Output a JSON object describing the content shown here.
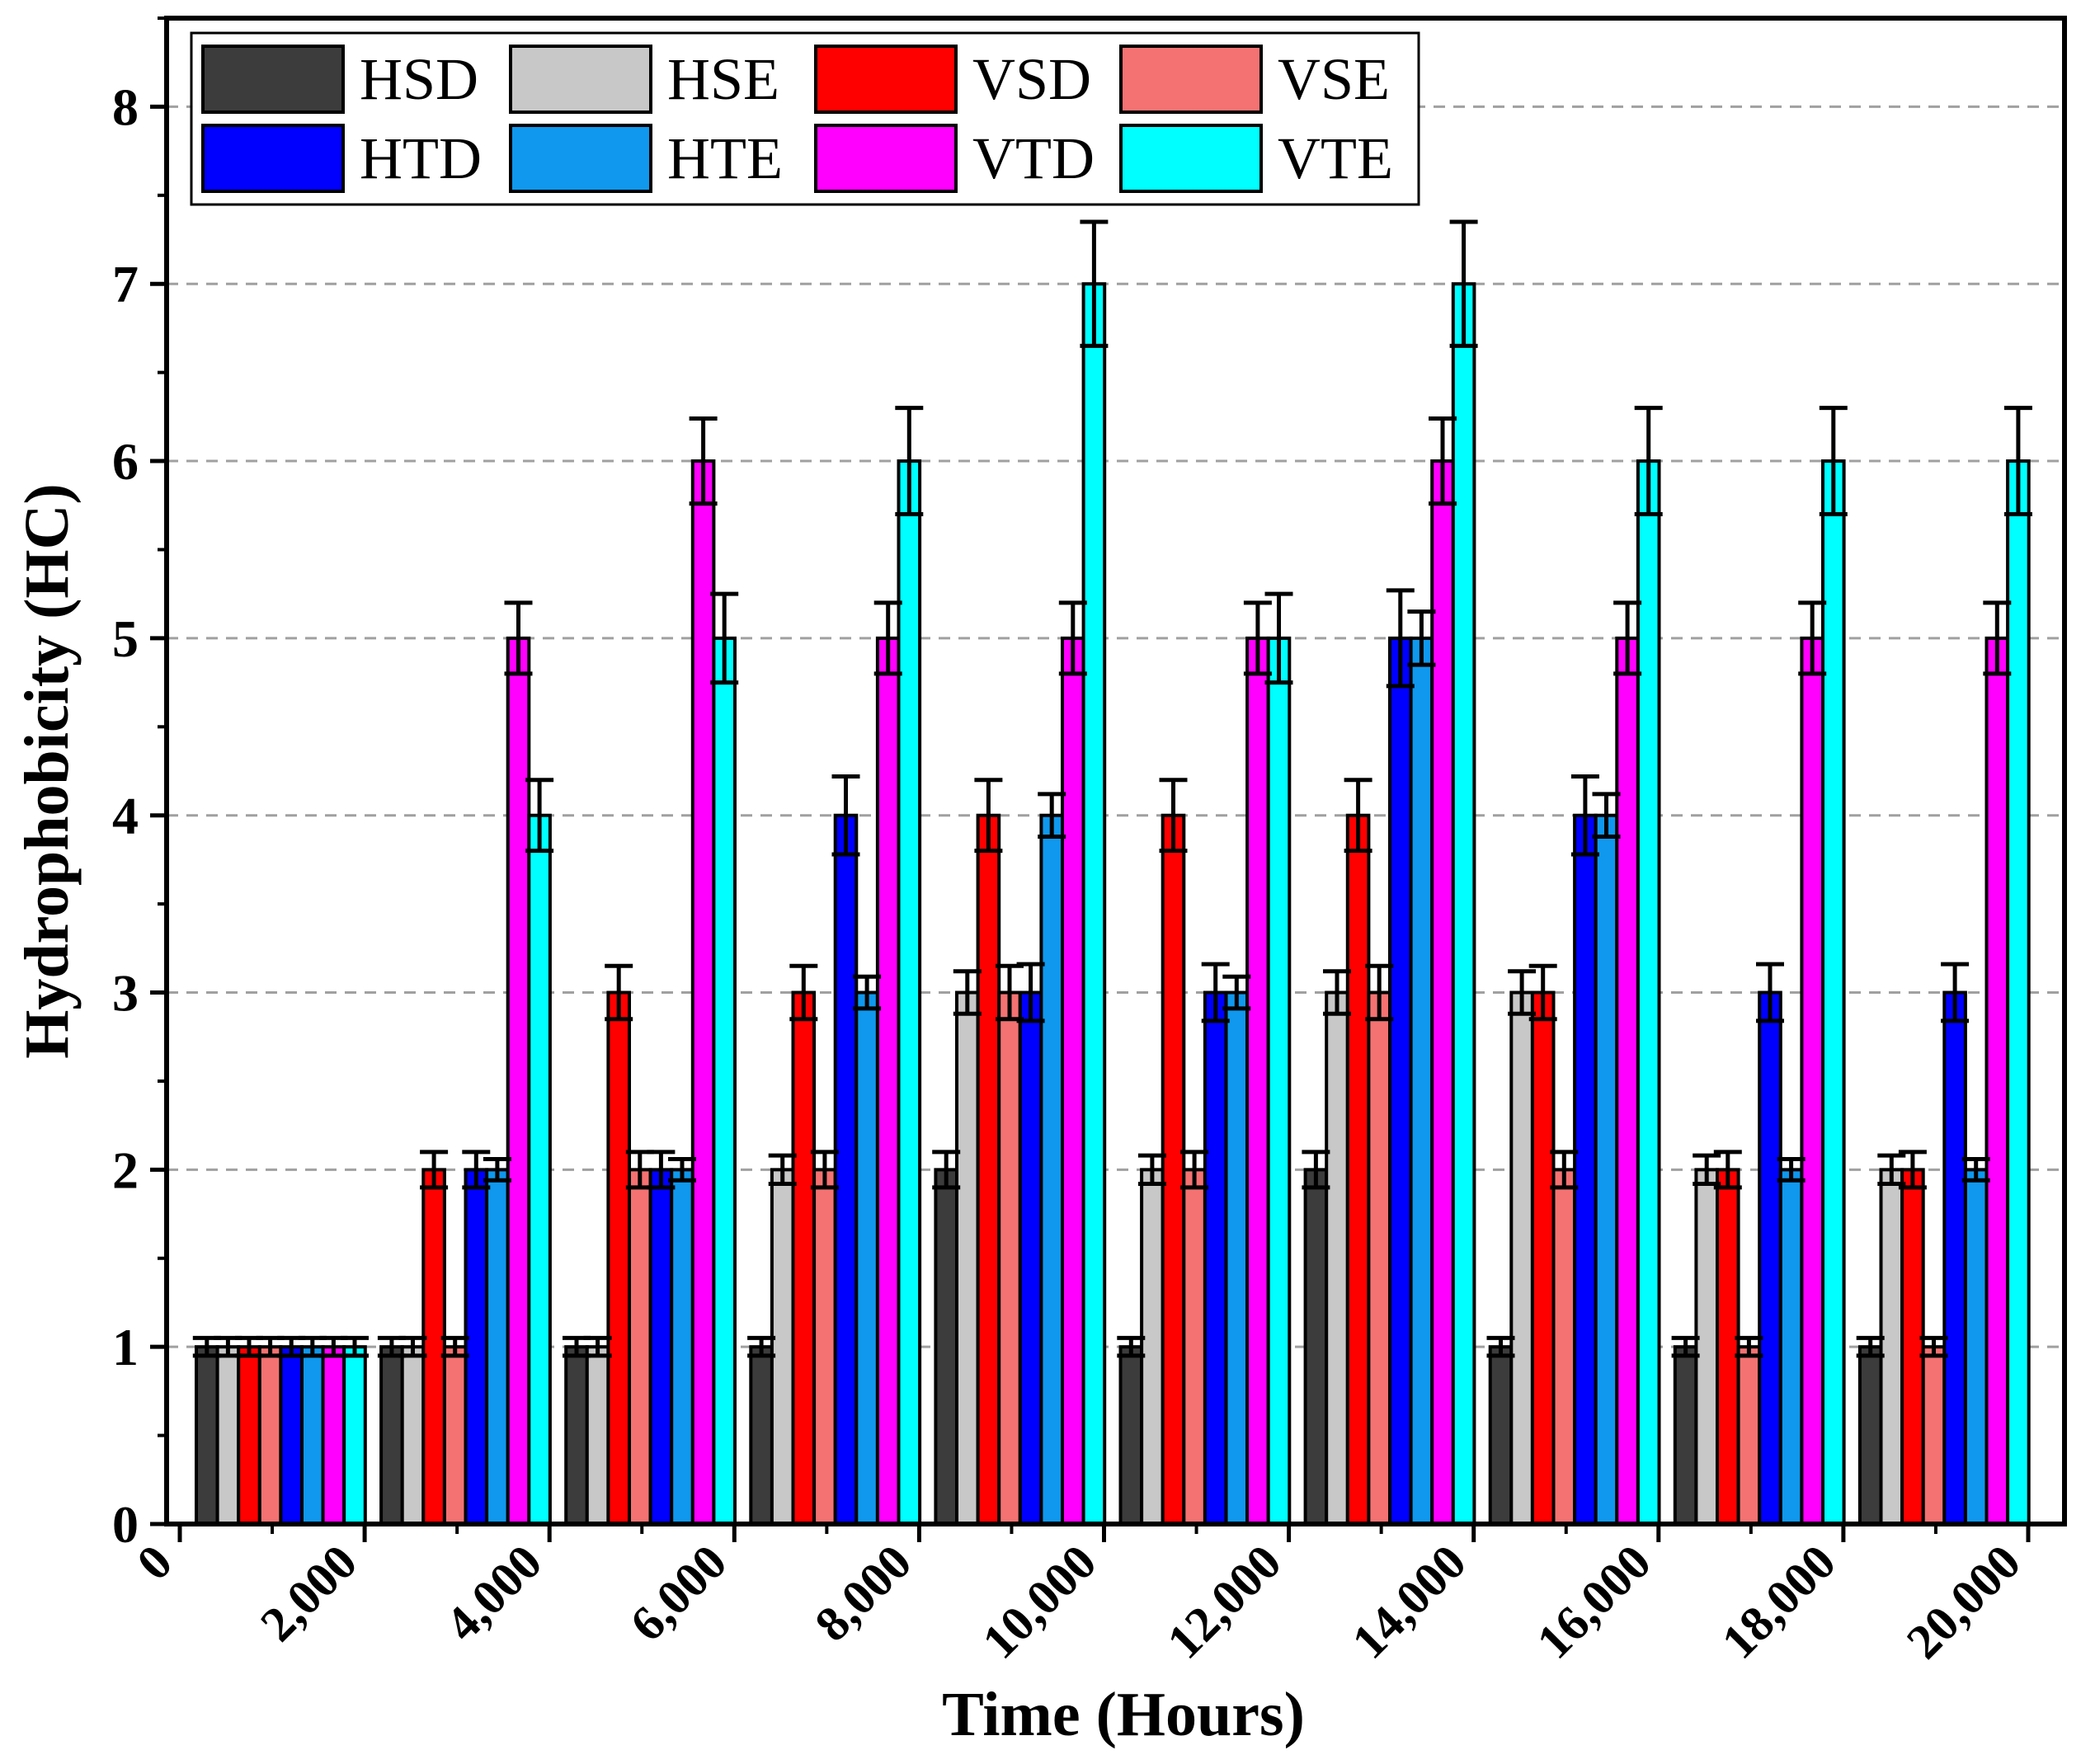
{
  "chart_data": {
    "type": "bar",
    "title": "",
    "xlabel": "Time (Hours)",
    "ylabel": "Hydrophobicity (HC)",
    "ylim": [
      0,
      8.5
    ],
    "xlim": [
      0,
      21000
    ],
    "yticks": [
      "0",
      "1",
      "2",
      "3",
      "4",
      "5",
      "6",
      "7",
      "8"
    ],
    "xticks": [
      "0",
      "2,000",
      "4,000",
      "6,000",
      "8,000",
      "10,000",
      "12,000",
      "14,000",
      "16,000",
      "18,000",
      "20,000"
    ],
    "xtick_values": [
      0,
      2000,
      4000,
      6000,
      8000,
      10000,
      12000,
      14000,
      16000,
      18000,
      20000
    ],
    "grid": "horizontal dashed",
    "legend_position": "top-left",
    "group_positions": [
      0,
      2000,
      4000,
      6000,
      8000,
      10000,
      12000,
      14000,
      16000,
      18000
    ],
    "series": [
      {
        "name": "HSD",
        "color": "#3c3c3c",
        "values": [
          1,
          1,
          1,
          1,
          2,
          1,
          2,
          1,
          1,
          1
        ],
        "errors": [
          0.05,
          0.05,
          0.05,
          0.05,
          0.1,
          0.05,
          0.1,
          0.05,
          0.05,
          0.05
        ]
      },
      {
        "name": "HSE",
        "color": "#c8c8c8",
        "values": [
          1,
          1,
          1,
          2,
          3,
          2,
          3,
          3,
          2,
          2
        ],
        "errors": [
          0.05,
          0.05,
          0.05,
          0.08,
          0.12,
          0.08,
          0.12,
          0.12,
          0.08,
          0.08
        ]
      },
      {
        "name": "VSD",
        "color": "#ff0000",
        "values": [
          1,
          2,
          3,
          3,
          4,
          4,
          4,
          3,
          2,
          2
        ],
        "errors": [
          0.05,
          0.1,
          0.15,
          0.15,
          0.2,
          0.2,
          0.2,
          0.15,
          0.1,
          0.1
        ]
      },
      {
        "name": "VSE",
        "color": "#f47272",
        "values": [
          1,
          1,
          2,
          2,
          3,
          2,
          3,
          2,
          1,
          1
        ],
        "errors": [
          0.05,
          0.05,
          0.1,
          0.1,
          0.15,
          0.1,
          0.15,
          0.1,
          0.05,
          0.05
        ]
      },
      {
        "name": "HTD",
        "color": "#0000ff",
        "values": [
          1,
          2,
          2,
          4,
          3,
          3,
          5,
          4,
          3,
          3
        ],
        "errors": [
          0.05,
          0.1,
          0.1,
          0.22,
          0.16,
          0.16,
          0.27,
          0.22,
          0.16,
          0.16
        ]
      },
      {
        "name": "HTE",
        "color": "#0f98ee",
        "values": [
          1,
          2,
          2,
          3,
          4,
          3,
          5,
          4,
          2,
          2
        ],
        "errors": [
          0.05,
          0.06,
          0.06,
          0.09,
          0.12,
          0.09,
          0.15,
          0.12,
          0.06,
          0.06
        ]
      },
      {
        "name": "VTD",
        "color": "#ff00ff",
        "values": [
          1,
          5,
          6,
          5,
          5,
          5,
          6,
          5,
          5,
          5
        ],
        "errors": [
          0.05,
          0.2,
          0.24,
          0.2,
          0.2,
          0.2,
          0.24,
          0.2,
          0.2,
          0.2
        ]
      },
      {
        "name": "VTE",
        "color": "#00ffff",
        "values": [
          1,
          4,
          5,
          6,
          7,
          5,
          7,
          6,
          6,
          6
        ],
        "errors": [
          0.05,
          0.2,
          0.25,
          0.3,
          0.35,
          0.25,
          0.35,
          0.3,
          0.3,
          0.3
        ]
      }
    ]
  }
}
